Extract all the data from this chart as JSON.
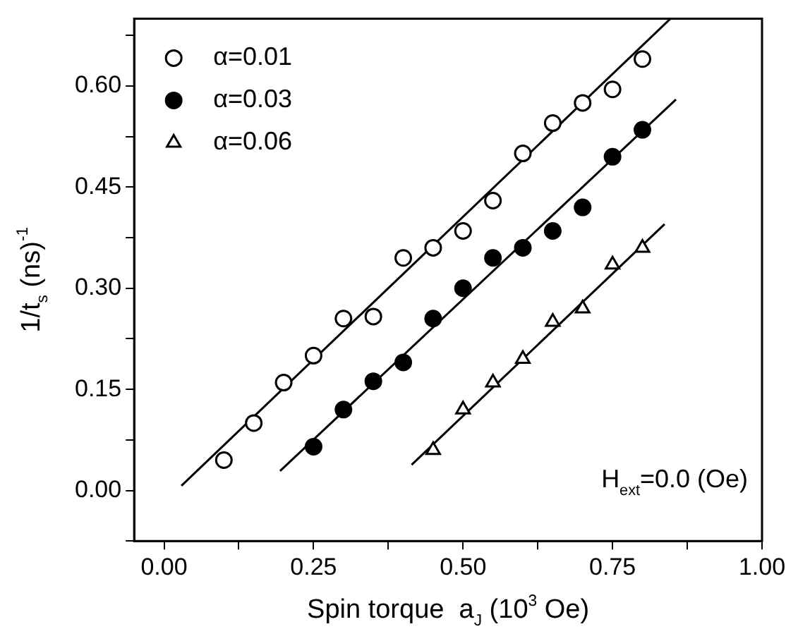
{
  "chart_data": {
    "type": "scatter",
    "xlabel": "Spin torque  a$_{J}$ (10$^{3}$ Oe)",
    "ylabel": "1/t$_{s}$ (ns)$^{-1}$",
    "xlim": [
      -0.05,
      1.0
    ],
    "ylim": [
      -0.075,
      0.7
    ],
    "xticks": [
      {
        "value": 0,
        "label": "0.00"
      },
      {
        "value": 0.125,
        "label": null
      },
      {
        "value": 0.25,
        "label": "0.25"
      },
      {
        "value": 0.375,
        "label": null
      },
      {
        "value": 0.5,
        "label": "0.50"
      },
      {
        "value": 0.625,
        "label": null
      },
      {
        "value": 0.75,
        "label": "0.75"
      },
      {
        "value": 0.875,
        "label": null
      },
      {
        "value": 1.0,
        "label": "1.00"
      }
    ],
    "yticks": [
      {
        "value": -0.075,
        "label": null
      },
      {
        "value": 0,
        "label": "0.00"
      },
      {
        "value": 0.075,
        "label": null
      },
      {
        "value": 0.15,
        "label": "0.15"
      },
      {
        "value": 0.225,
        "label": null
      },
      {
        "value": 0.3,
        "label": "0.30"
      },
      {
        "value": 0.375,
        "label": null
      },
      {
        "value": 0.45,
        "label": "0.45"
      },
      {
        "value": 0.525,
        "label": null
      },
      {
        "value": 0.6,
        "label": "0.60"
      },
      {
        "value": 0.675,
        "label": null
      }
    ],
    "legend": "top left",
    "annotations": [
      "H$_{ext}$=0.0 (Oe)"
    ],
    "series": [
      {
        "name": "α=0.01",
        "type": "scatter",
        "marker": "circle",
        "color": "#ffffff",
        "x": [
          0.1,
          0.15,
          0.2,
          0.25,
          0.3,
          0.35,
          0.4,
          0.45,
          0.5,
          0.55,
          0.6,
          0.65,
          0.7,
          0.75,
          0.8
        ],
        "values": [
          0.045,
          0.1,
          0.16,
          0.2,
          0.255,
          0.258,
          0.345,
          0.36,
          0.385,
          0.43,
          0.5,
          0.545,
          0.575,
          0.595,
          0.64
        ]
      },
      {
        "name": "α=0.03",
        "type": "scatter",
        "marker": "circle",
        "color": "#000000",
        "x": [
          0.25,
          0.3,
          0.35,
          0.4,
          0.45,
          0.5,
          0.55,
          0.6,
          0.65,
          0.7,
          0.75,
          0.8
        ],
        "values": [
          0.065,
          0.12,
          0.162,
          0.19,
          0.255,
          0.3,
          0.345,
          0.36,
          0.385,
          0.42,
          0.495,
          0.535
        ]
      },
      {
        "name": "α=0.06",
        "type": "scatter",
        "marker": "triangle",
        "color": "#ffffff",
        "x": [
          0.45,
          0.5,
          0.55,
          0.6,
          0.65,
          0.7,
          0.75,
          0.8
        ],
        "values": [
          0.06,
          0.12,
          0.16,
          0.195,
          0.25,
          0.27,
          0.335,
          0.36
        ]
      },
      {
        "type": "line",
        "marker": "none",
        "color": "#000000",
        "x": [
          0.029,
          0.847
        ],
        "values": [
          0.007,
          0.7
        ]
      },
      {
        "type": "line",
        "marker": "none",
        "color": "#000000",
        "x": [
          0.194,
          0.856
        ],
        "values": [
          0.029,
          0.58
        ]
      },
      {
        "type": "line",
        "marker": "none",
        "color": "#000000",
        "x": [
          0.414,
          0.837
        ],
        "values": [
          0.038,
          0.395
        ]
      }
    ]
  }
}
